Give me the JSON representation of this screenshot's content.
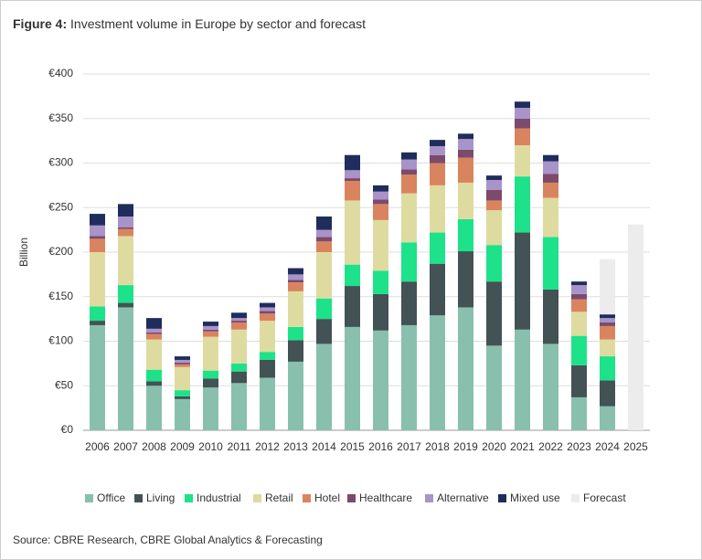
{
  "chart_data": {
    "type": "stacked-bar",
    "title_prefix": "Figure 4:",
    "title": "Investment volume in Europe by sector and forecast",
    "y_label": "Billion",
    "source": "Source: CBRE Research, CBRE Global Analytics & Forecasting",
    "categories": [
      "2006",
      "2007",
      "2008",
      "2009",
      "2010",
      "2011",
      "2012",
      "2013",
      "2014",
      "2015",
      "2016",
      "2017",
      "2018",
      "2019",
      "2020",
      "2021",
      "2022",
      "2023",
      "2024",
      "2025"
    ],
    "ylim": [
      0,
      400
    ],
    "yticks": [
      {
        "value": 0,
        "label": "€0"
      },
      {
        "value": 50,
        "label": "€50"
      },
      {
        "value": 100,
        "label": "€100"
      },
      {
        "value": 150,
        "label": "€150"
      },
      {
        "value": 200,
        "label": "€200"
      },
      {
        "value": 250,
        "label": "€250"
      },
      {
        "value": 300,
        "label": "€300"
      },
      {
        "value": 350,
        "label": "€350"
      },
      {
        "value": 400,
        "label": "€400"
      }
    ],
    "grid": true,
    "legend": "bottom",
    "series": [
      {
        "name": "Office",
        "color": "#88c0ad",
        "values": [
          118,
          138,
          50,
          35,
          48,
          53,
          59,
          77,
          97,
          116,
          112,
          118,
          129,
          138,
          95,
          113,
          97,
          37,
          27,
          null
        ]
      },
      {
        "name": "Living",
        "color": "#435254",
        "values": [
          5,
          5,
          5,
          3,
          10,
          13,
          20,
          24,
          28,
          46,
          41,
          49,
          58,
          63,
          72,
          109,
          61,
          36,
          29,
          null
        ]
      },
      {
        "name": "Industrial",
        "color": "#1de28a",
        "values": [
          16,
          20,
          13,
          7,
          9,
          9,
          9,
          15,
          23,
          24,
          26,
          44,
          35,
          36,
          41,
          63,
          59,
          33,
          27,
          null
        ]
      },
      {
        "name": "Retail",
        "color": "#dedba0",
        "values": [
          61,
          55,
          34,
          26,
          38,
          38,
          35,
          40,
          52,
          72,
          57,
          55,
          53,
          41,
          39,
          35,
          44,
          27,
          19,
          null
        ]
      },
      {
        "name": "Hotel",
        "color": "#d9845f",
        "values": [
          15,
          8,
          6,
          3,
          6,
          8,
          8,
          10,
          12,
          22,
          18,
          21,
          25,
          28,
          11,
          19,
          17,
          14,
          15,
          null
        ]
      },
      {
        "name": "Healthcare",
        "color": "#7c4a6b",
        "values": [
          3,
          2,
          2,
          2,
          2,
          2,
          3,
          3,
          5,
          3,
          5,
          6,
          9,
          9,
          12,
          11,
          10,
          6,
          4,
          null
        ]
      },
      {
        "name": "Alternative",
        "color": "#a894c9",
        "values": [
          12,
          12,
          4,
          3,
          4,
          3,
          4,
          6,
          8,
          9,
          9,
          11,
          10,
          12,
          11,
          12,
          14,
          10,
          5,
          null
        ]
      },
      {
        "name": "Mixed use",
        "color": "#1f2d5c",
        "values": [
          13,
          14,
          12,
          4,
          5,
          6,
          5,
          7,
          15,
          17,
          7,
          8,
          7,
          6,
          5,
          7,
          7,
          4,
          4,
          null
        ]
      },
      {
        "name": "Forecast",
        "color": "#ececec",
        "overlay": true,
        "values": [
          null,
          null,
          null,
          null,
          null,
          null,
          null,
          null,
          null,
          null,
          null,
          null,
          null,
          null,
          null,
          null,
          null,
          null,
          192,
          231
        ]
      }
    ]
  }
}
